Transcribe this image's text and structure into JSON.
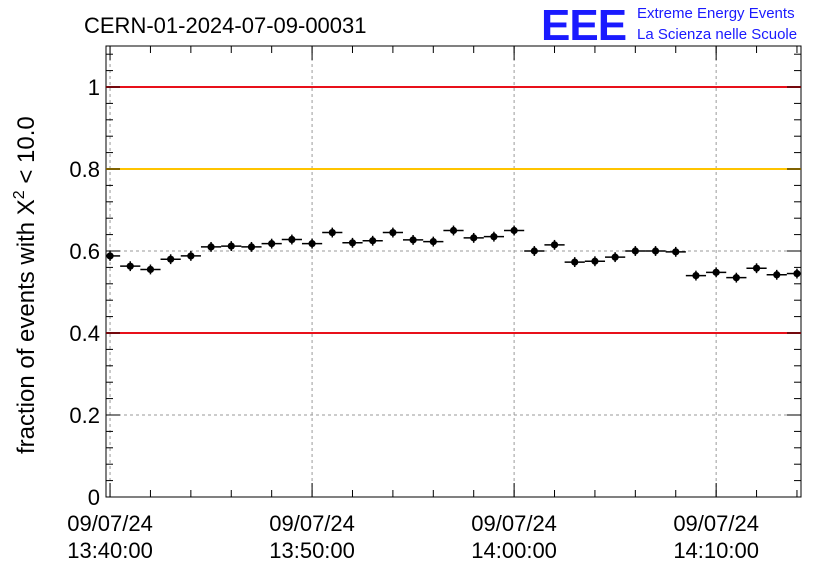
{
  "title": "CERN-01-2024-07-09-00031",
  "logo": {
    "letters": "EEE",
    "line1": "Extreme Energy Events",
    "line2": "La Scienza nelle Scuole",
    "color": "#1a1aff"
  },
  "chart_data": {
    "type": "scatter",
    "ylabel_main": "fraction of events with X",
    "ylabel_sup": "2",
    "ylabel_tail": " < 10.0",
    "ylim": [
      0,
      1.1
    ],
    "yticks": [
      {
        "value": 0,
        "label": "0"
      },
      {
        "value": 0.2,
        "label": "0.2"
      },
      {
        "value": 0.4,
        "label": "0.4"
      },
      {
        "value": 0.6,
        "label": "0.6"
      },
      {
        "value": 0.8,
        "label": "0.8"
      },
      {
        "value": 1.0,
        "label": "1"
      }
    ],
    "xlim_minutes": [
      -0.2,
      34.2
    ],
    "xticks": [
      {
        "minute": 0,
        "date": "09/07/24",
        "time": "13:40:00"
      },
      {
        "minute": 10,
        "date": "09/07/24",
        "time": "13:50:00"
      },
      {
        "minute": 20,
        "date": "09/07/24",
        "time": "14:00:00"
      },
      {
        "minute": 30,
        "date": "09/07/24",
        "time": "14:10:00"
      }
    ],
    "grid": true,
    "reference_lines": [
      {
        "value": 1.0,
        "color": "#e8101a"
      },
      {
        "value": 0.8,
        "color": "#ffc400"
      },
      {
        "value": 0.4,
        "color": "#e8101a"
      }
    ],
    "marker_color": "#000000",
    "points": [
      {
        "x": 0.0,
        "y": 0.588,
        "err": 0.012
      },
      {
        "x": 1.0,
        "y": 0.563,
        "err": 0.012
      },
      {
        "x": 2.0,
        "y": 0.555,
        "err": 0.012
      },
      {
        "x": 3.0,
        "y": 0.58,
        "err": 0.012
      },
      {
        "x": 4.0,
        "y": 0.588,
        "err": 0.012
      },
      {
        "x": 5.0,
        "y": 0.61,
        "err": 0.012
      },
      {
        "x": 6.0,
        "y": 0.612,
        "err": 0.012
      },
      {
        "x": 7.0,
        "y": 0.61,
        "err": 0.012
      },
      {
        "x": 8.0,
        "y": 0.618,
        "err": 0.012
      },
      {
        "x": 9.0,
        "y": 0.628,
        "err": 0.012
      },
      {
        "x": 10.0,
        "y": 0.618,
        "err": 0.012
      },
      {
        "x": 11.0,
        "y": 0.645,
        "err": 0.012
      },
      {
        "x": 12.0,
        "y": 0.62,
        "err": 0.012
      },
      {
        "x": 13.0,
        "y": 0.625,
        "err": 0.012
      },
      {
        "x": 14.0,
        "y": 0.645,
        "err": 0.012
      },
      {
        "x": 15.0,
        "y": 0.627,
        "err": 0.012
      },
      {
        "x": 16.0,
        "y": 0.623,
        "err": 0.012
      },
      {
        "x": 17.0,
        "y": 0.65,
        "err": 0.012
      },
      {
        "x": 18.0,
        "y": 0.632,
        "err": 0.012
      },
      {
        "x": 19.0,
        "y": 0.635,
        "err": 0.012
      },
      {
        "x": 20.0,
        "y": 0.65,
        "err": 0.012
      },
      {
        "x": 21.0,
        "y": 0.6,
        "err": 0.012
      },
      {
        "x": 22.0,
        "y": 0.615,
        "err": 0.012
      },
      {
        "x": 23.0,
        "y": 0.573,
        "err": 0.012
      },
      {
        "x": 24.0,
        "y": 0.575,
        "err": 0.012
      },
      {
        "x": 25.0,
        "y": 0.585,
        "err": 0.012
      },
      {
        "x": 26.0,
        "y": 0.6,
        "err": 0.012
      },
      {
        "x": 27.0,
        "y": 0.6,
        "err": 0.012
      },
      {
        "x": 28.0,
        "y": 0.598,
        "err": 0.012
      },
      {
        "x": 29.0,
        "y": 0.54,
        "err": 0.012
      },
      {
        "x": 30.0,
        "y": 0.548,
        "err": 0.012
      },
      {
        "x": 31.0,
        "y": 0.535,
        "err": 0.012
      },
      {
        "x": 32.0,
        "y": 0.558,
        "err": 0.012
      },
      {
        "x": 33.0,
        "y": 0.542,
        "err": 0.012
      },
      {
        "x": 34.0,
        "y": 0.545,
        "err": 0.012
      }
    ]
  }
}
